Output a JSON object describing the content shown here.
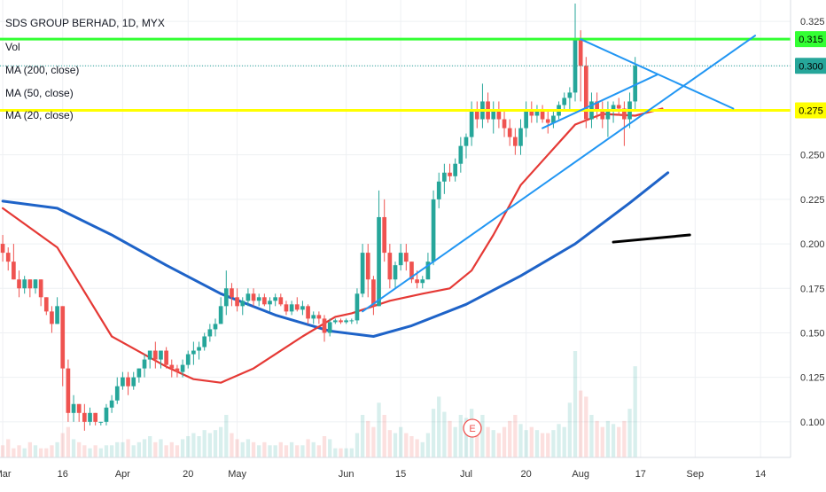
{
  "legend": {
    "title": "SDS GROUP BERHAD, 1D, MYX",
    "vol": "Vol",
    "ma200": "MA (200, close)",
    "ma50": "MA (50, close)",
    "ma20": "MA (20, close)"
  },
  "price_tags": [
    {
      "value": "0.315",
      "bg": "#33ff33",
      "fg": "#000000"
    },
    {
      "value": "0.300",
      "bg": "#26a69a",
      "fg": "#ffffff"
    },
    {
      "value": "0.275",
      "bg": "#ffff00",
      "fg": "#000000"
    }
  ],
  "earnings_marker": "E",
  "colors": {
    "up": "#26a69a",
    "down": "#ef5350",
    "ma20": "#e53935",
    "ma50": "#1e63c8",
    "trend": "#2196f3",
    "resistance": "#33ff33",
    "support": "#ffff00",
    "grid": "#eef0f3"
  },
  "chart_data": {
    "type": "candlestick",
    "y_ticks": [
      "0.325",
      "0.300",
      "0.275",
      "0.250",
      "0.225",
      "0.200",
      "0.175",
      "0.150",
      "0.125",
      "0.100"
    ],
    "y_tick_values": [
      0.325,
      0.3,
      0.275,
      0.25,
      0.225,
      0.2,
      0.175,
      0.15,
      0.125,
      0.1
    ],
    "x_ticks": [
      "Mar",
      "16",
      "Apr",
      "20",
      "May",
      "Jun",
      "15",
      "Jul",
      "20",
      "Aug",
      "17",
      "Sep",
      "14"
    ],
    "x_tick_positions": [
      0,
      11,
      22,
      34,
      43,
      63,
      73,
      85,
      96,
      106,
      117,
      127,
      139
    ],
    "ylim": [
      0.08,
      0.337
    ],
    "n_bars": 145,
    "candles": [
      [
        0.2,
        0.205,
        0.19,
        0.195
      ],
      [
        0.195,
        0.198,
        0.185,
        0.19
      ],
      [
        0.19,
        0.2,
        0.18,
        0.18
      ],
      [
        0.18,
        0.185,
        0.17,
        0.175
      ],
      [
        0.175,
        0.182,
        0.172,
        0.18
      ],
      [
        0.18,
        0.18,
        0.17,
        0.175
      ],
      [
        0.175,
        0.18,
        0.172,
        0.18
      ],
      [
        0.18,
        0.18,
        0.165,
        0.17
      ],
      [
        0.17,
        0.17,
        0.16,
        0.162
      ],
      [
        0.162,
        0.165,
        0.15,
        0.155
      ],
      [
        0.155,
        0.17,
        0.155,
        0.165
      ],
      [
        0.165,
        0.165,
        0.12,
        0.13
      ],
      [
        0.13,
        0.135,
        0.1,
        0.105
      ],
      [
        0.105,
        0.115,
        0.1,
        0.11
      ],
      [
        0.11,
        0.11,
        0.1,
        0.105
      ],
      [
        0.105,
        0.11,
        0.095,
        0.1
      ],
      [
        0.1,
        0.108,
        0.098,
        0.105
      ],
      [
        0.105,
        0.105,
        0.098,
        0.1
      ],
      [
        0.1,
        0.1,
        0.098,
        0.1
      ],
      [
        0.1,
        0.11,
        0.098,
        0.108
      ],
      [
        0.108,
        0.115,
        0.105,
        0.112
      ],
      [
        0.112,
        0.125,
        0.11,
        0.12
      ],
      [
        0.12,
        0.128,
        0.118,
        0.125
      ],
      [
        0.125,
        0.128,
        0.115,
        0.12
      ],
      [
        0.12,
        0.128,
        0.118,
        0.125
      ],
      [
        0.125,
        0.13,
        0.122,
        0.13
      ],
      [
        0.13,
        0.138,
        0.125,
        0.135
      ],
      [
        0.135,
        0.14,
        0.13,
        0.14
      ],
      [
        0.14,
        0.145,
        0.13,
        0.135
      ],
      [
        0.135,
        0.14,
        0.13,
        0.14
      ],
      [
        0.14,
        0.142,
        0.13,
        0.132
      ],
      [
        0.132,
        0.135,
        0.125,
        0.13
      ],
      [
        0.13,
        0.132,
        0.125,
        0.128
      ],
      [
        0.128,
        0.135,
        0.125,
        0.132
      ],
      [
        0.132,
        0.14,
        0.13,
        0.138
      ],
      [
        0.138,
        0.145,
        0.132,
        0.14
      ],
      [
        0.14,
        0.145,
        0.135,
        0.142
      ],
      [
        0.142,
        0.15,
        0.14,
        0.148
      ],
      [
        0.148,
        0.155,
        0.145,
        0.152
      ],
      [
        0.152,
        0.158,
        0.148,
        0.155
      ],
      [
        0.155,
        0.17,
        0.155,
        0.165
      ],
      [
        0.165,
        0.185,
        0.16,
        0.175
      ],
      [
        0.175,
        0.178,
        0.165,
        0.17
      ],
      [
        0.17,
        0.175,
        0.162,
        0.165
      ],
      [
        0.165,
        0.17,
        0.16,
        0.168
      ],
      [
        0.168,
        0.175,
        0.165,
        0.172
      ],
      [
        0.172,
        0.175,
        0.165,
        0.168
      ],
      [
        0.168,
        0.172,
        0.165,
        0.17
      ],
      [
        0.17,
        0.172,
        0.165,
        0.166
      ],
      [
        0.166,
        0.17,
        0.162,
        0.168
      ],
      [
        0.168,
        0.172,
        0.165,
        0.17
      ],
      [
        0.17,
        0.172,
        0.165,
        0.166
      ],
      [
        0.166,
        0.168,
        0.16,
        0.162
      ],
      [
        0.162,
        0.168,
        0.16,
        0.166
      ],
      [
        0.166,
        0.17,
        0.162,
        0.163
      ],
      [
        0.163,
        0.168,
        0.16,
        0.165
      ],
      [
        0.165,
        0.166,
        0.155,
        0.158
      ],
      [
        0.158,
        0.162,
        0.155,
        0.16
      ],
      [
        0.16,
        0.162,
        0.155,
        0.158
      ],
      [
        0.158,
        0.16,
        0.145,
        0.15
      ],
      [
        0.15,
        0.158,
        0.148,
        0.156
      ],
      [
        0.156,
        0.158,
        0.155,
        0.157
      ],
      [
        0.157,
        0.158,
        0.155,
        0.156
      ],
      [
        0.156,
        0.158,
        0.155,
        0.157
      ],
      [
        0.157,
        0.158,
        0.155,
        0.157
      ],
      [
        0.157,
        0.175,
        0.155,
        0.172
      ],
      [
        0.172,
        0.2,
        0.17,
        0.195
      ],
      [
        0.195,
        0.2,
        0.17,
        0.18
      ],
      [
        0.18,
        0.182,
        0.16,
        0.165
      ],
      [
        0.165,
        0.23,
        0.165,
        0.215
      ],
      [
        0.215,
        0.225,
        0.19,
        0.195
      ],
      [
        0.195,
        0.2,
        0.175,
        0.18
      ],
      [
        0.18,
        0.19,
        0.175,
        0.188
      ],
      [
        0.188,
        0.2,
        0.185,
        0.195
      ],
      [
        0.195,
        0.2,
        0.185,
        0.19
      ],
      [
        0.19,
        0.19,
        0.178,
        0.18
      ],
      [
        0.18,
        0.185,
        0.175,
        0.178
      ],
      [
        0.178,
        0.182,
        0.175,
        0.18
      ],
      [
        0.18,
        0.195,
        0.18,
        0.19
      ],
      [
        0.19,
        0.23,
        0.188,
        0.225
      ],
      [
        0.225,
        0.24,
        0.22,
        0.235
      ],
      [
        0.235,
        0.245,
        0.228,
        0.24
      ],
      [
        0.24,
        0.245,
        0.235,
        0.238
      ],
      [
        0.238,
        0.248,
        0.235,
        0.245
      ],
      [
        0.245,
        0.26,
        0.24,
        0.255
      ],
      [
        0.255,
        0.262,
        0.248,
        0.26
      ],
      [
        0.26,
        0.28,
        0.255,
        0.275
      ],
      [
        0.275,
        0.28,
        0.265,
        0.27
      ],
      [
        0.27,
        0.29,
        0.265,
        0.28
      ],
      [
        0.28,
        0.285,
        0.268,
        0.27
      ],
      [
        0.27,
        0.28,
        0.262,
        0.275
      ],
      [
        0.275,
        0.28,
        0.265,
        0.27
      ],
      [
        0.27,
        0.275,
        0.26,
        0.265
      ],
      [
        0.265,
        0.27,
        0.255,
        0.26
      ],
      [
        0.26,
        0.265,
        0.25,
        0.255
      ],
      [
        0.255,
        0.27,
        0.25,
        0.265
      ],
      [
        0.265,
        0.28,
        0.26,
        0.275
      ],
      [
        0.275,
        0.28,
        0.268,
        0.272
      ],
      [
        0.272,
        0.278,
        0.268,
        0.275
      ],
      [
        0.275,
        0.278,
        0.268,
        0.27
      ],
      [
        0.27,
        0.275,
        0.262,
        0.268
      ],
      [
        0.268,
        0.275,
        0.265,
        0.272
      ],
      [
        0.272,
        0.28,
        0.27,
        0.278
      ],
      [
        0.278,
        0.285,
        0.275,
        0.282
      ],
      [
        0.282,
        0.288,
        0.275,
        0.285
      ],
      [
        0.285,
        0.335,
        0.28,
        0.315
      ],
      [
        0.315,
        0.32,
        0.28,
        0.3
      ],
      [
        0.3,
        0.305,
        0.265,
        0.27
      ],
      [
        0.27,
        0.285,
        0.265,
        0.28
      ],
      [
        0.28,
        0.285,
        0.27,
        0.275
      ],
      [
        0.275,
        0.28,
        0.265,
        0.27
      ],
      [
        0.27,
        0.28,
        0.26,
        0.275
      ],
      [
        0.275,
        0.28,
        0.268,
        0.278
      ],
      [
        0.278,
        0.282,
        0.272,
        0.276
      ],
      [
        0.276,
        0.28,
        0.255,
        0.27
      ],
      [
        0.27,
        0.285,
        0.265,
        0.28
      ],
      [
        0.28,
        0.305,
        0.275,
        0.3
      ]
    ],
    "volumes": [
      4,
      6,
      3,
      4,
      3,
      5,
      4,
      3,
      3,
      4,
      5,
      8,
      10,
      6,
      5,
      4,
      3,
      4,
      3,
      4,
      4,
      5,
      5,
      6,
      4,
      5,
      6,
      7,
      5,
      6,
      4,
      5,
      4,
      6,
      7,
      8,
      7,
      9,
      8,
      9,
      10,
      14,
      8,
      6,
      5,
      6,
      5,
      4,
      5,
      4,
      4,
      5,
      4,
      5,
      4,
      4,
      6,
      5,
      4,
      7,
      6,
      3,
      3,
      3,
      3,
      8,
      14,
      12,
      10,
      18,
      14,
      9,
      8,
      10,
      8,
      7,
      6,
      5,
      8,
      16,
      20,
      15,
      12,
      10,
      14,
      13,
      16,
      12,
      14,
      10,
      9,
      8,
      10,
      12,
      14,
      11,
      9,
      10,
      9,
      8,
      8,
      9,
      11,
      10,
      18,
      35,
      22,
      20,
      14,
      12,
      10,
      12,
      11,
      10,
      12,
      16,
      30
    ],
    "ma20": [
      [
        0,
        0.22
      ],
      [
        10,
        0.198
      ],
      [
        20,
        0.148
      ],
      [
        30,
        0.131
      ],
      [
        35,
        0.124
      ],
      [
        40,
        0.122
      ],
      [
        46,
        0.13
      ],
      [
        55,
        0.148
      ],
      [
        61,
        0.159
      ],
      [
        64,
        0.161
      ],
      [
        71,
        0.168
      ],
      [
        77,
        0.172
      ],
      [
        82,
        0.175
      ],
      [
        86,
        0.185
      ],
      [
        90,
        0.205
      ],
      [
        95,
        0.233
      ],
      [
        100,
        0.25
      ],
      [
        105,
        0.267
      ],
      [
        110,
        0.273
      ],
      [
        116,
        0.272
      ],
      [
        121,
        0.276
      ]
    ],
    "ma50": [
      [
        0,
        0.224
      ],
      [
        10,
        0.22
      ],
      [
        20,
        0.205
      ],
      [
        30,
        0.188
      ],
      [
        40,
        0.172
      ],
      [
        50,
        0.16
      ],
      [
        60,
        0.151
      ],
      [
        68,
        0.148
      ],
      [
        75,
        0.154
      ],
      [
        85,
        0.166
      ],
      [
        95,
        0.182
      ],
      [
        105,
        0.2
      ],
      [
        115,
        0.223
      ],
      [
        122,
        0.24
      ]
    ],
    "lines": {
      "resistance": 0.315,
      "support": 0.275,
      "dotted_last": 0.3,
      "trend_up": [
        [
          66,
          0.162
        ],
        [
          138,
          0.317
        ]
      ],
      "trend_down": [
        [
          106,
          0.315
        ],
        [
          134,
          0.276
        ]
      ],
      "trend_rise": [
        [
          99,
          0.265
        ],
        [
          120,
          0.295
        ]
      ],
      "black_line": [
        [
          112,
          0.201
        ],
        [
          126,
          0.205
        ]
      ]
    }
  }
}
